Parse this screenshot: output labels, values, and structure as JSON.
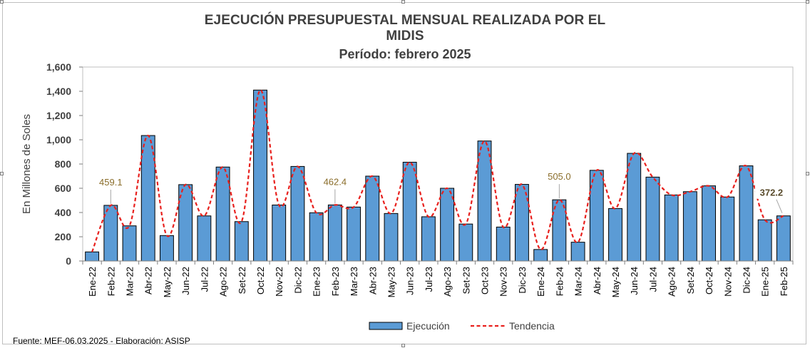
{
  "title": "EJECUCIÓN PRESUPUESTAL MENSUAL REALIZADA POR EL MIDIS",
  "subtitle": "Período: febrero 2025",
  "source": "Fuente:  MEF-06.03.2025 - Elaboración: ASISP",
  "chart_data": {
    "type": "bar",
    "title": "EJECUCIÓN PRESUPUESTAL MENSUAL REALIZADA POR EL MIDIS",
    "subtitle": "Período: febrero 2025",
    "ylabel": "En Millones de Soles",
    "ylim": [
      0,
      1600
    ],
    "yticks": [
      "0",
      "200",
      "400",
      "600",
      "800",
      "1,000",
      "1,200",
      "1,400",
      "1,600"
    ],
    "categories": [
      "Ene-22",
      "Feb-22",
      "Mar-22",
      "Abr-22",
      "May-22",
      "Jun-22",
      "Jul-22",
      "Ago-22",
      "Set-22",
      "Oct-22",
      "Nov-22",
      "Dic-22",
      "Ene-23",
      "Feb-23",
      "Mar-23",
      "Abr-23",
      "May-23",
      "Jun-23",
      "Jul-23",
      "Ago-23",
      "Set-23",
      "Oct-23",
      "Nov-23",
      "Dic-23",
      "Ene-24",
      "Feb-24",
      "Mar-24",
      "Abr-24",
      "May-24",
      "Jun-24",
      "Jul-24",
      "Ago-24",
      "Set-24",
      "Oct-24",
      "Nov-24",
      "Dic-24",
      "Ene-25",
      "Feb-25"
    ],
    "series": [
      {
        "name": "Ejecución",
        "type": "bar",
        "color": "#5b9bd5",
        "values": [
          75,
          459.1,
          290,
          1035,
          210,
          630,
          372,
          775,
          325,
          1410,
          462,
          780,
          398,
          462.4,
          445,
          700,
          392,
          815,
          365,
          600,
          305,
          990,
          280,
          632,
          95,
          505.0,
          155,
          748,
          433,
          888,
          692,
          545,
          572,
          620,
          528,
          785,
          340,
          372.2
        ]
      },
      {
        "name": "Tendencia",
        "type": "line",
        "color": "#e8201d",
        "values": [
          75,
          459.1,
          290,
          1035,
          210,
          630,
          372,
          775,
          325,
          1410,
          462,
          780,
          398,
          462.4,
          445,
          700,
          392,
          815,
          365,
          600,
          305,
          990,
          280,
          632,
          95,
          505.0,
          155,
          748,
          433,
          888,
          692,
          545,
          572,
          620,
          528,
          785,
          340,
          372.2
        ]
      }
    ],
    "annotations": [
      {
        "index": 1,
        "text": "459.1"
      },
      {
        "index": 13,
        "text": "462.4"
      },
      {
        "index": 25,
        "text": "505.0"
      },
      {
        "index": 37,
        "text": "372.2"
      }
    ],
    "legend": "bottom",
    "grid": false
  }
}
